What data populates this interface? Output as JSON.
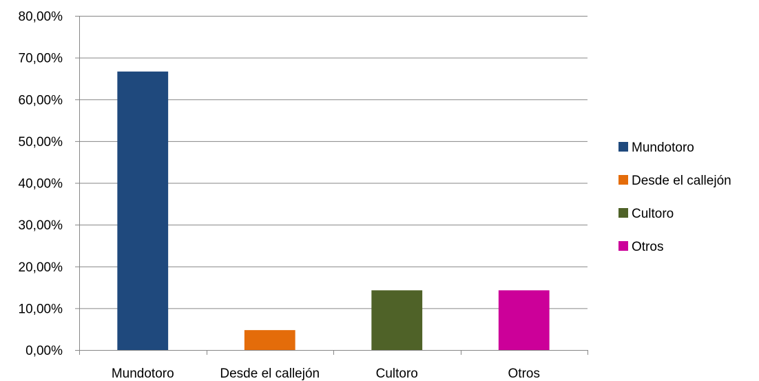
{
  "chart_data": {
    "type": "bar",
    "title": "",
    "xlabel": "",
    "ylabel": "",
    "categories": [
      "Mundotoro",
      "Desde el callejón",
      "Cultoro",
      "Otros"
    ],
    "values": [
      66.67,
      4.76,
      14.29,
      14.29
    ],
    "value_format": "percent_comma_2dp",
    "ylim": [
      0,
      80
    ],
    "yticks": [
      0,
      10,
      20,
      30,
      40,
      50,
      60,
      70,
      80
    ],
    "ytick_labels": [
      "0,00%",
      "10,00%",
      "20,00%",
      "30,00%",
      "40,00%",
      "50,00%",
      "60,00%",
      "70,00%",
      "80,00%"
    ],
    "colors": [
      "#1f497d",
      "#e46c0a",
      "#4f6228",
      "#cc0099"
    ],
    "grid": true,
    "legend": {
      "position": "right",
      "entries": [
        "Mundotoro",
        "Desde el callejón",
        "Cultoro",
        "Otros"
      ]
    }
  }
}
